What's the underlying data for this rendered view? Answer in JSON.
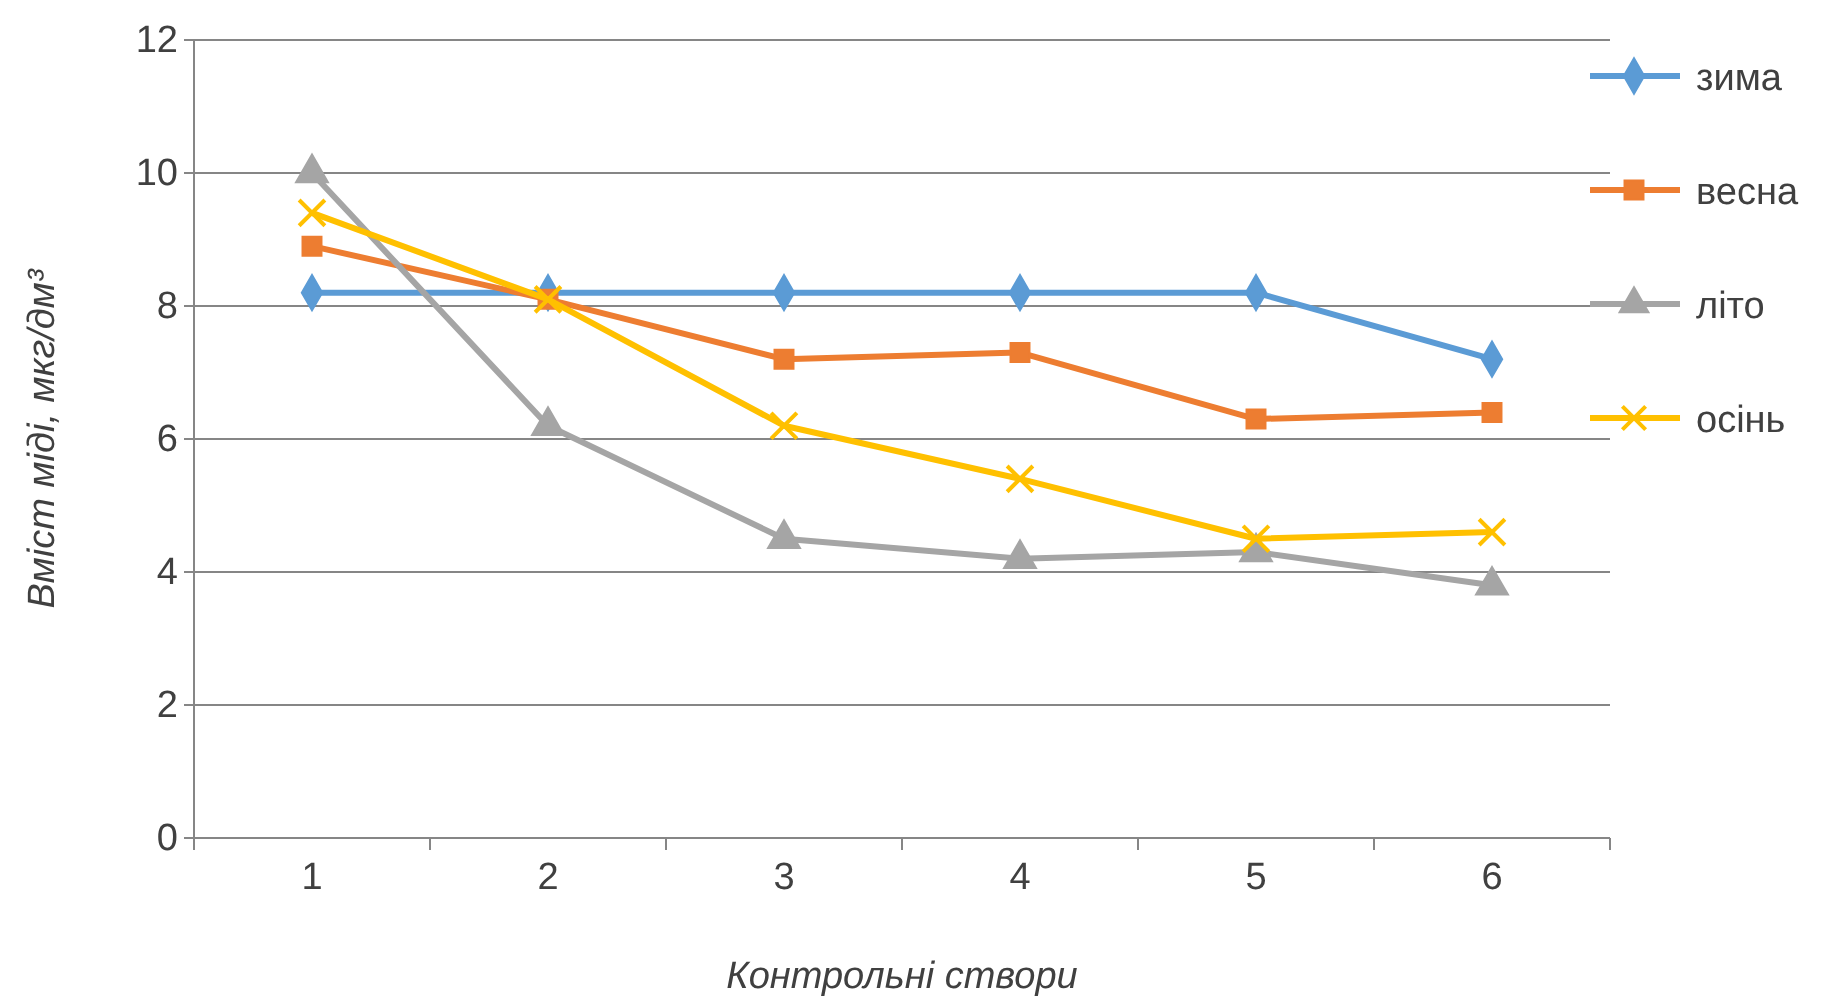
{
  "chart_data": {
    "type": "line",
    "xlabel": "Контрольні створи",
    "ylabel": "Вміст міді, мкг/дм³",
    "categories": [
      "1",
      "2",
      "3",
      "4",
      "5",
      "6"
    ],
    "ylim": [
      0,
      12
    ],
    "yticks": [
      0,
      2,
      4,
      6,
      8,
      10,
      12
    ],
    "grid": "y",
    "legend": "right",
    "series": [
      {
        "name": "зима",
        "color": "#5b9bd5",
        "marker": "diamond",
        "values": [
          8.2,
          8.2,
          8.2,
          8.2,
          8.2,
          7.2
        ]
      },
      {
        "name": "весна",
        "color": "#ed7d31",
        "marker": "square",
        "values": [
          8.9,
          8.1,
          7.2,
          7.3,
          6.3,
          6.4
        ]
      },
      {
        "name": "літо",
        "color": "#a5a5a5",
        "marker": "triangle",
        "values": [
          10,
          6.2,
          4.5,
          4.2,
          4.3,
          3.8
        ]
      },
      {
        "name": "осінь",
        "color": "#ffc000",
        "marker": "cross",
        "values": [
          9.4,
          8.1,
          6.2,
          5.4,
          4.5,
          4.6
        ]
      }
    ]
  }
}
